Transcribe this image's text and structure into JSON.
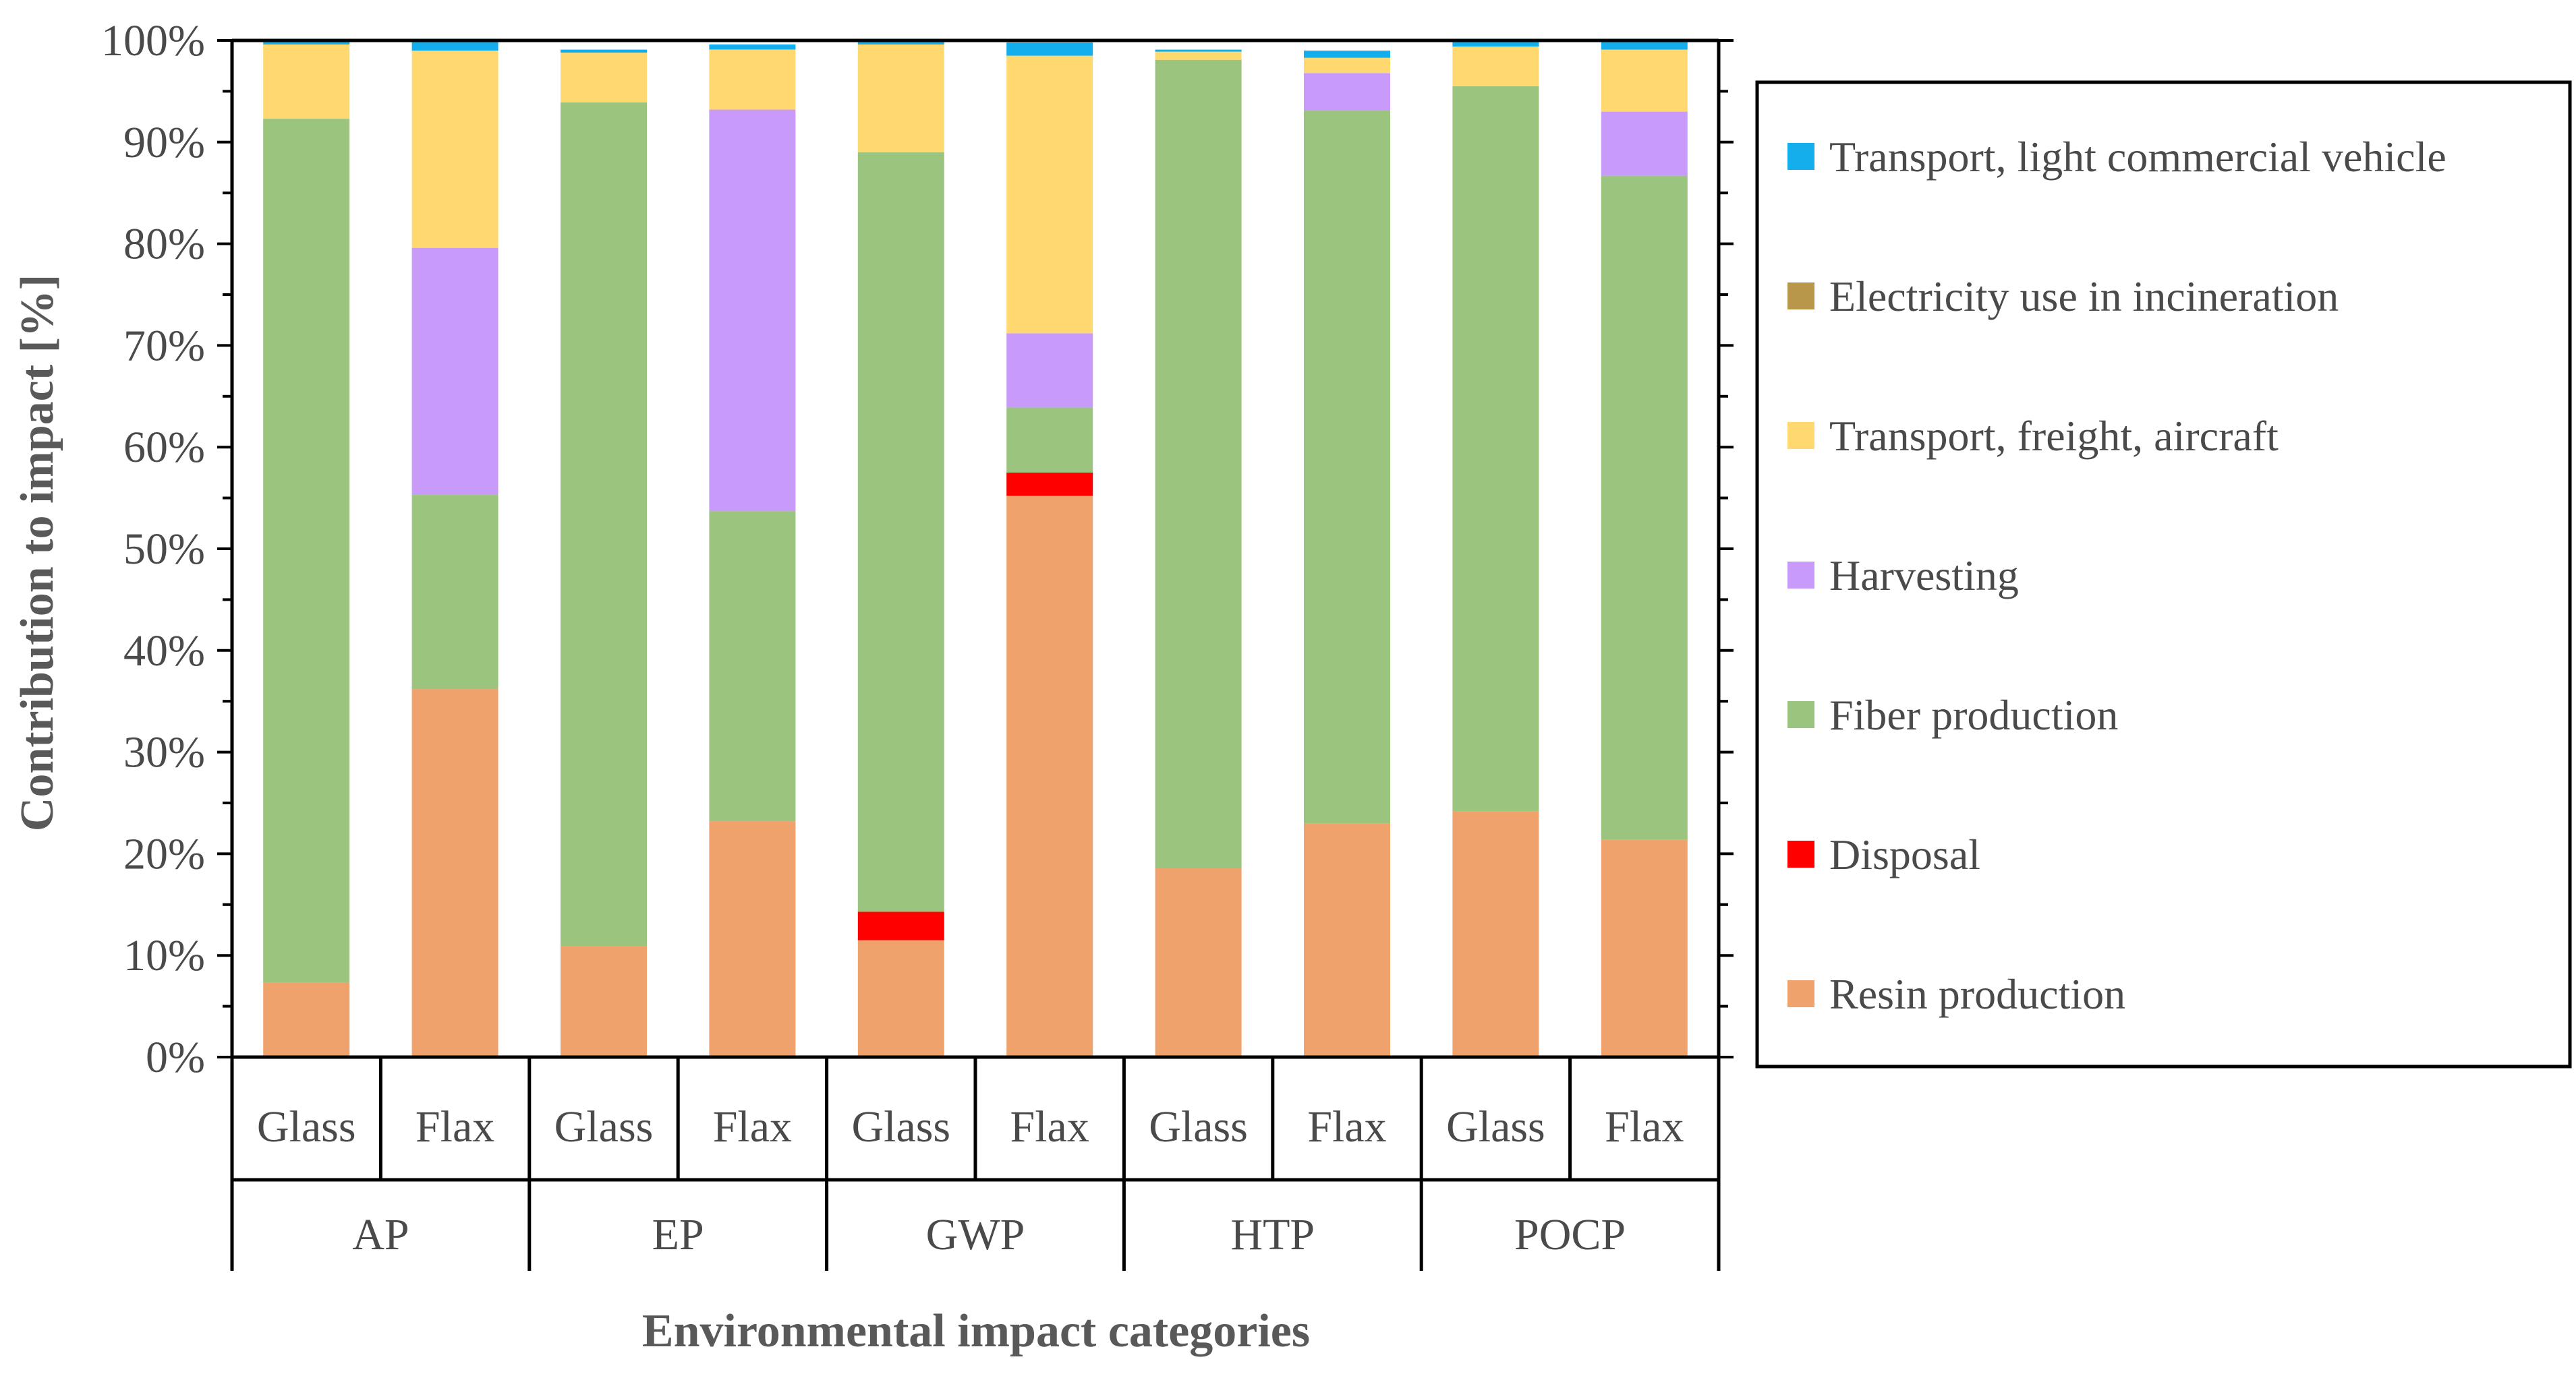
{
  "chart_data": {
    "type": "bar",
    "stacked": true,
    "title": "",
    "xlabel": "Environmental impact categories",
    "ylabel": "Contribution to impact [%]",
    "ylim": [
      0,
      100
    ],
    "yticks": [
      "0%",
      "10%",
      "20%",
      "30%",
      "40%",
      "50%",
      "60%",
      "70%",
      "80%",
      "90%",
      "100%"
    ],
    "groups": [
      "AP",
      "EP",
      "GWP",
      "HTP",
      "POCP"
    ],
    "categories": [
      "Glass",
      "Flax",
      "Glass",
      "Flax",
      "Glass",
      "Flax",
      "Glass",
      "Flax",
      "Glass",
      "Flax"
    ],
    "legend_position": "right",
    "series": [
      {
        "name": "Resin production",
        "color": "#F0A26D",
        "values": [
          7.3,
          36.2,
          10.9,
          23.2,
          11.5,
          55.2,
          18.6,
          23.0,
          24.2,
          21.4
        ]
      },
      {
        "name": "Disposal",
        "color": "#FF0000",
        "values": [
          0.0,
          0.0,
          0.0,
          0.0,
          2.8,
          2.3,
          0.0,
          0.0,
          0.0,
          0.0
        ]
      },
      {
        "name": "Fiber production",
        "color": "#9BC47E",
        "values": [
          85.0,
          19.1,
          83.0,
          30.5,
          74.7,
          6.4,
          79.5,
          70.1,
          71.3,
          65.3
        ]
      },
      {
        "name": "Harvesting",
        "color": "#C89BFA",
        "values": [
          0.0,
          24.3,
          0.0,
          39.5,
          0.0,
          7.3,
          0.0,
          3.7,
          0.0,
          6.3
        ]
      },
      {
        "name": "Transport, freight, aircraft",
        "color": "#FFD970",
        "values": [
          7.3,
          19.4,
          4.9,
          5.9,
          10.6,
          27.3,
          0.8,
          1.5,
          3.9,
          6.1
        ]
      },
      {
        "name": "Electricity use in incineration",
        "color": "#B8974A",
        "values": [
          0.0,
          0.0,
          0.0,
          0.0,
          0.0,
          0.0,
          0.0,
          0.0,
          0.0,
          0.0
        ]
      },
      {
        "name": "Transport, light commercial vehicle",
        "color": "#13AEEB",
        "values": [
          0.4,
          1.0,
          0.3,
          0.5,
          0.4,
          1.3,
          0.2,
          0.7,
          0.6,
          0.9
        ]
      }
    ],
    "legend_order": [
      "Transport, light commercial vehicle",
      "Electricity use in incineration",
      "Transport, freight, aircraft",
      "Harvesting",
      "Fiber production",
      "Disposal",
      "Resin production"
    ]
  }
}
